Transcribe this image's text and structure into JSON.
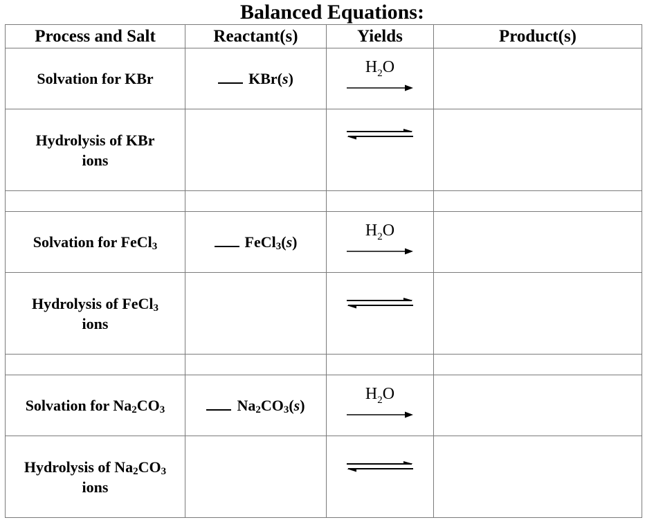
{
  "title": "Balanced Equations:",
  "headers": {
    "process": "Process and Salt",
    "reactants": "Reactant(s)",
    "yields": "Yields",
    "products": "Product(s)"
  },
  "rows": [
    {
      "process": "Solvation for KBr",
      "reactant_blank": "___",
      "reactant": "KBr(s)",
      "yields_type": "arrow",
      "yields_label": "H2O"
    },
    {
      "process_line1": "Hydrolysis of KBr",
      "process_line2": "ions",
      "yields_type": "equilibrium"
    },
    {
      "process": "Solvation for FeCl3",
      "reactant_blank": "___",
      "reactant": "FeCl3(s)",
      "yields_type": "arrow",
      "yields_label": "H2O"
    },
    {
      "process_line1": "Hydrolysis of FeCl3",
      "process_line2": "ions",
      "yields_type": "equilibrium"
    },
    {
      "process": "Solvation for Na2CO3",
      "reactant_blank": "___",
      "reactant": "Na2CO3(s)",
      "yields_type": "arrow",
      "yields_label": "H2O"
    },
    {
      "process_line1": "Hydrolysis of Na2CO3",
      "process_line2": "ions",
      "yields_type": "equilibrium"
    }
  ],
  "chem": {
    "kbr": "KBr",
    "fecl": "FeCl",
    "na": "Na",
    "co": "CO",
    "sub2": "2",
    "sub3": "3",
    "h": "H",
    "o": "O",
    "phase_open": "(",
    "phase_s": "s",
    "phase_close": ")",
    "solv_for": "Solvation for ",
    "hyd_of": "Hydrolysis of ",
    "ions": "ions"
  }
}
